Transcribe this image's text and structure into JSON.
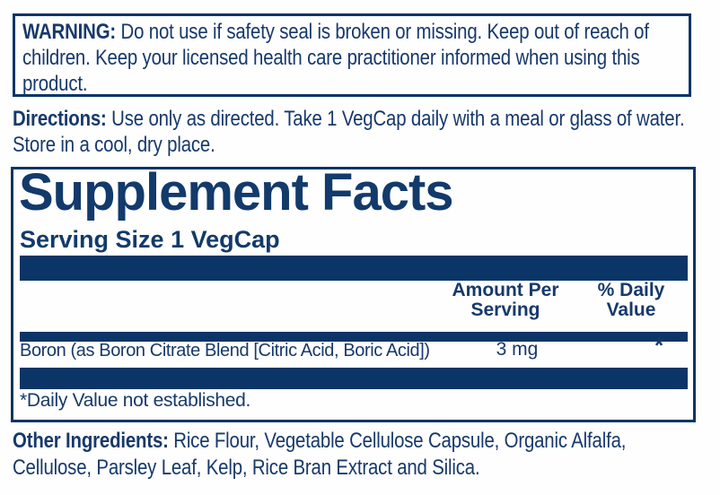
{
  "colors": {
    "navy": "#0b3567",
    "text_navy": "#17396b",
    "background": "#fefefe"
  },
  "warning": {
    "label": "WARNING:",
    "text": "Do not use if safety seal is broken or missing. Keep out of reach of children. Keep your licensed health care practitioner informed when using this product."
  },
  "directions": {
    "label": "Directions:",
    "text": "Use only as directed. Take 1 VegCap daily with a meal or glass of water. Store in a cool, dry place."
  },
  "supplement_facts": {
    "title": "Supplement Facts",
    "serving_size": "Serving Size 1 VegCap",
    "columns": {
      "amount": "Amount Per\nServing",
      "daily_value": "% Daily\nValue"
    },
    "rows": [
      {
        "name": "Boron (as Boron Citrate Blend [Citric Acid, Boric Acid])",
        "amount": "3 mg",
        "daily_value": "*"
      }
    ],
    "footnote": "*Daily Value not established."
  },
  "other_ingredients": {
    "label": "Other Ingredients:",
    "text": "Rice Flour, Vegetable Cellulose Capsule, Organic Alfalfa, Cellulose, Parsley Leaf, Kelp, Rice Bran Extract and Silica."
  }
}
